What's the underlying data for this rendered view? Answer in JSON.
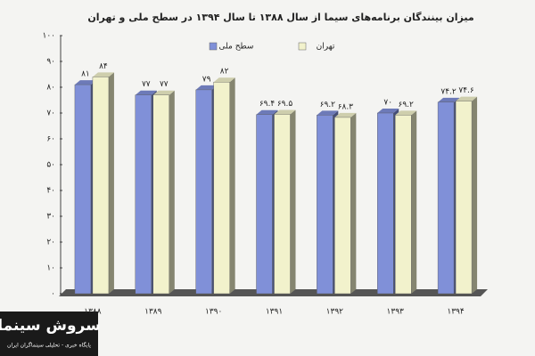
{
  "chart_data": {
    "type": "bar3d",
    "title": "میزان بینندگان برنامه‌های سیما از سال ۱۳۸۸ تا سال ۱۳۹۴ در سطح ملی و تهران",
    "categories": [
      "۱۳۸۸",
      "۱۳۸۹",
      "۱۳۹۰",
      "۱۳۹۱",
      "۱۳۹۲",
      "۱۳۹۳",
      "۱۳۹۴"
    ],
    "series": [
      {
        "name": "سطح ملی",
        "color": "#8090d8",
        "values": [
          81,
          77,
          79,
          69.4,
          69.2,
          70,
          74.2
        ],
        "value_labels": [
          "۸۱",
          "۷۷",
          "۷۹",
          "۶۹.۴",
          "۶۹.۲",
          "۷۰",
          "۷۴.۲"
        ]
      },
      {
        "name": "تهران",
        "color": "#f2f2cc",
        "values": [
          84,
          77,
          82,
          69.5,
          68.3,
          69.2,
          74.6
        ],
        "value_labels": [
          "۸۴",
          "۷۷",
          "۸۲",
          "۶۹.۵",
          "۶۸.۳",
          "۶۹.۲",
          "۷۴.۶"
        ]
      }
    ],
    "ylim": [
      0,
      100
    ],
    "yticks": [
      {
        "value": 0,
        "label": "۰"
      },
      {
        "value": 10,
        "label": "۱۰"
      },
      {
        "value": 20,
        "label": "۲۰"
      },
      {
        "value": 30,
        "label": "۳۰"
      },
      {
        "value": 40,
        "label": "۴۰"
      },
      {
        "value": 50,
        "label": "۵۰"
      },
      {
        "value": 60,
        "label": "۶۰"
      },
      {
        "value": 70,
        "label": "۷۰"
      },
      {
        "value": 80,
        "label": "۸۰"
      },
      {
        "value": 90,
        "label": "۹۰"
      },
      {
        "value": 100,
        "label": "۱۰۰"
      }
    ]
  },
  "watermark": {
    "title": "سروش سینما",
    "subtitle": "پایگاه خبری - تحلیلی سینماگران ایران"
  }
}
